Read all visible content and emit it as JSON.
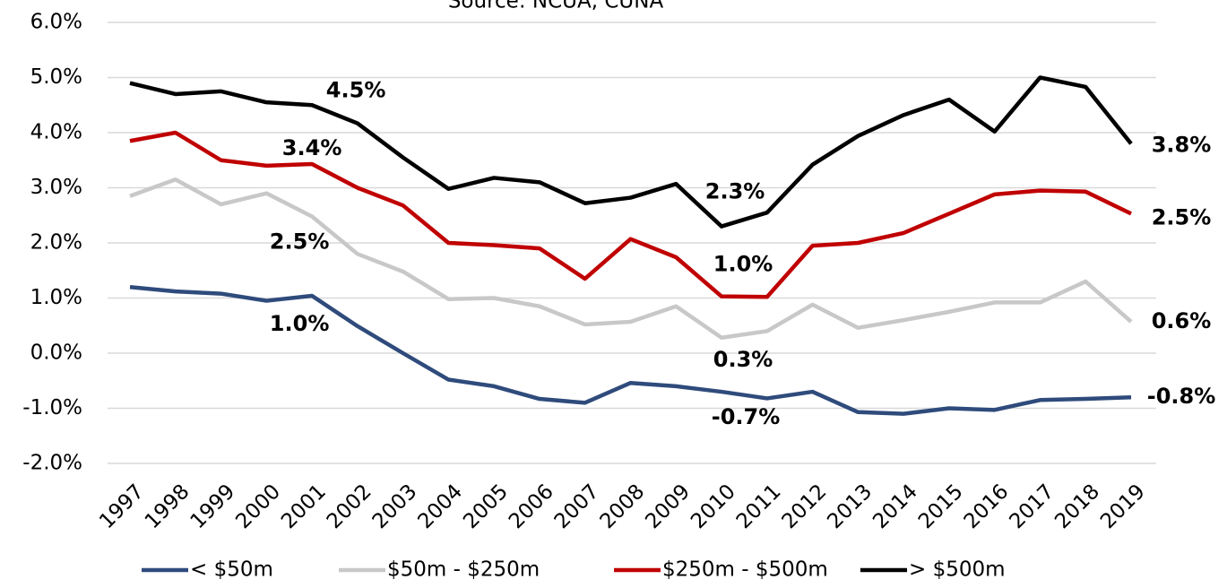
{
  "chart_data": {
    "type": "line",
    "subtitle": "Source: NCUA, CUNA",
    "x": [
      "1997",
      "1998",
      "1999",
      "2000",
      "2001",
      "2002",
      "2003",
      "2004",
      "2005",
      "2006",
      "2007",
      "2008",
      "2009",
      "2010",
      "2011",
      "2012",
      "2013",
      "2014",
      "2015",
      "2016",
      "2017",
      "2018",
      "2019"
    ],
    "ylim": [
      -2,
      6
    ],
    "yticks": [
      {
        "value": -2,
        "label": "-2.0%"
      },
      {
        "value": -1,
        "label": "-1.0%"
      },
      {
        "value": 0,
        "label": "0.0%"
      },
      {
        "value": 1,
        "label": "1.0%"
      },
      {
        "value": 2,
        "label": "2.0%"
      },
      {
        "value": 3,
        "label": "3.0%"
      },
      {
        "value": 4,
        "label": "4.0%"
      },
      {
        "value": 5,
        "label": "5.0%"
      },
      {
        "value": 6,
        "label": "6.0%"
      }
    ],
    "grid": true,
    "legend": "bottom",
    "series": [
      {
        "name": "< $50m",
        "color": "#2f4b7c",
        "values": [
          1.2,
          1.12,
          1.08,
          0.95,
          1.04,
          0.49,
          0.0,
          -0.48,
          -0.6,
          -0.83,
          -0.9,
          -0.54,
          -0.6,
          -0.7,
          -0.82,
          -0.7,
          -1.07,
          -1.1,
          -1.0,
          -1.03,
          -0.85,
          -0.83,
          -0.8
        ],
        "value_labels": [
          null,
          null,
          null,
          null,
          "1.0%",
          null,
          null,
          null,
          null,
          null,
          null,
          null,
          null,
          "-0.7%",
          null,
          null,
          null,
          null,
          null,
          null,
          null,
          null,
          "-0.8%"
        ]
      },
      {
        "name": "$50m - $250m",
        "color": "#c8c8c8",
        "values": [
          2.85,
          3.15,
          2.7,
          2.9,
          2.48,
          1.8,
          1.48,
          0.98,
          1.0,
          0.85,
          0.52,
          0.57,
          0.85,
          0.28,
          0.4,
          0.88,
          0.46,
          0.6,
          0.75,
          0.92,
          0.92,
          1.3,
          0.57
        ],
        "value_labels": [
          null,
          null,
          null,
          null,
          "2.5%",
          null,
          null,
          null,
          null,
          null,
          null,
          null,
          null,
          "0.3%",
          null,
          null,
          null,
          null,
          null,
          null,
          null,
          null,
          "0.6%"
        ]
      },
      {
        "name": "$250m - $500m",
        "color": "#c00000",
        "values": [
          3.85,
          4.0,
          3.5,
          3.4,
          3.43,
          3.0,
          2.68,
          2.0,
          1.96,
          1.9,
          1.35,
          2.07,
          1.74,
          1.03,
          1.02,
          1.95,
          2.0,
          2.18,
          2.53,
          2.88,
          2.95,
          2.93,
          2.53
        ],
        "value_labels": [
          null,
          null,
          null,
          null,
          "3.4%",
          null,
          null,
          null,
          null,
          null,
          null,
          null,
          null,
          "1.0%",
          null,
          null,
          null,
          null,
          null,
          null,
          null,
          null,
          "2.5%"
        ]
      },
      {
        "name": "> $500m",
        "color": "#000000",
        "values": [
          4.9,
          4.7,
          4.75,
          4.55,
          4.5,
          4.17,
          3.55,
          2.98,
          3.18,
          3.1,
          2.72,
          2.82,
          3.07,
          2.3,
          2.55,
          3.42,
          3.94,
          4.32,
          4.6,
          4.02,
          5.0,
          4.83,
          3.8
        ],
        "value_labels": [
          null,
          null,
          null,
          null,
          "4.5%",
          null,
          null,
          null,
          null,
          null,
          null,
          null,
          null,
          "2.3%",
          null,
          null,
          null,
          null,
          null,
          null,
          null,
          null,
          "3.8%"
        ]
      }
    ]
  }
}
